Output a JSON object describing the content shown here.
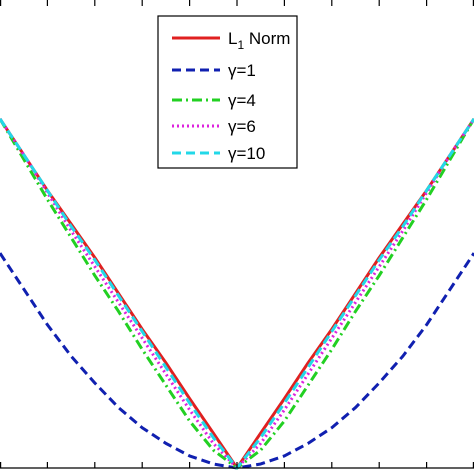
{
  "chart_data": {
    "type": "line",
    "title": "",
    "xlabel": "",
    "ylabel": "",
    "xlim": [
      -1,
      1
    ],
    "ylim": [
      0,
      1.05
    ],
    "grid": false,
    "legend_position": "top-center",
    "x": [
      -1.0,
      -0.9,
      -0.8,
      -0.7,
      -0.6,
      -0.5,
      -0.4,
      -0.3,
      -0.2,
      -0.1,
      0.0,
      0.1,
      0.2,
      0.3,
      0.4,
      0.5,
      0.6,
      0.7,
      0.8,
      0.9,
      1.0
    ],
    "series": [
      {
        "name": "L1 Norm",
        "legend_label": "L1 Norm",
        "color": "#e02020",
        "dash": "solid",
        "values": [
          0.78,
          0.7,
          0.62,
          0.545,
          0.47,
          0.39,
          0.31,
          0.235,
          0.155,
          0.078,
          0.0,
          0.078,
          0.155,
          0.235,
          0.31,
          0.39,
          0.47,
          0.545,
          0.62,
          0.7,
          0.78
        ]
      },
      {
        "name": "γ=1",
        "legend_label": "γ=1",
        "color": "#1020b0",
        "dash": "dashed",
        "values": [
          0.48,
          0.4,
          0.32,
          0.25,
          0.19,
          0.135,
          0.09,
          0.055,
          0.027,
          0.009,
          0.0,
          0.009,
          0.027,
          0.055,
          0.09,
          0.135,
          0.19,
          0.25,
          0.32,
          0.4,
          0.48
        ]
      },
      {
        "name": "γ=4",
        "legend_label": "γ=4",
        "color": "#22d022",
        "dash": "dashdot",
        "values": [
          0.78,
          0.69,
          0.6,
          0.515,
          0.43,
          0.35,
          0.265,
          0.185,
          0.105,
          0.04,
          0.0,
          0.04,
          0.105,
          0.185,
          0.265,
          0.35,
          0.43,
          0.515,
          0.6,
          0.69,
          0.78
        ]
      },
      {
        "name": "γ=6",
        "legend_label": "γ=6",
        "color": "#dd22dd",
        "dash": "dotted",
        "values": [
          0.78,
          0.7,
          0.615,
          0.53,
          0.45,
          0.37,
          0.29,
          0.21,
          0.13,
          0.055,
          0.0,
          0.055,
          0.13,
          0.21,
          0.29,
          0.37,
          0.45,
          0.53,
          0.615,
          0.7,
          0.78
        ]
      },
      {
        "name": "γ=10",
        "legend_label": "γ=10",
        "color": "#22d8e8",
        "dash": "dashed",
        "values": [
          0.78,
          0.7,
          0.62,
          0.54,
          0.465,
          0.385,
          0.305,
          0.225,
          0.145,
          0.068,
          0.0,
          0.068,
          0.145,
          0.225,
          0.305,
          0.385,
          0.465,
          0.54,
          0.62,
          0.7,
          0.78
        ]
      }
    ]
  }
}
